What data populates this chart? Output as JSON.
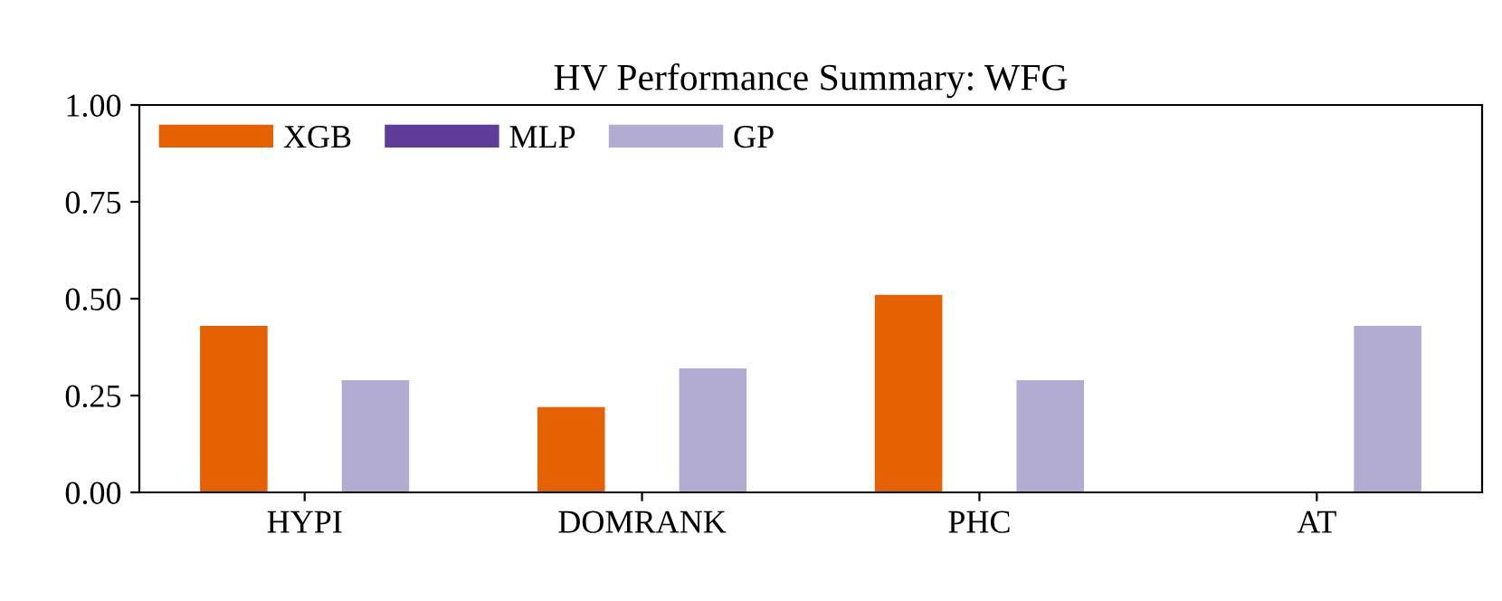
{
  "chart_data": {
    "type": "bar",
    "title": "HV Performance Summary: WFG",
    "categories": [
      "HYPI",
      "DOMRANK",
      "PHC",
      "AT"
    ],
    "series": [
      {
        "name": "XGB",
        "color": "#e66101",
        "values": [
          0.43,
          0.22,
          0.51,
          0
        ]
      },
      {
        "name": "MLP",
        "color": "#5e3c99",
        "values": [
          0,
          0,
          0,
          0
        ]
      },
      {
        "name": "GP",
        "color": "#b2abd2",
        "values": [
          0.29,
          0.32,
          0.29,
          0.43
        ]
      }
    ],
    "ylim": [
      0,
      1
    ],
    "yticks": [
      {
        "value": 0,
        "label": "0.00"
      },
      {
        "value": 0.25,
        "label": "0.25"
      },
      {
        "value": 0.5,
        "label": "0.50"
      },
      {
        "value": 0.75,
        "label": "0.75"
      },
      {
        "value": 1,
        "label": "1.00"
      }
    ],
    "grid": false,
    "legend": "top left"
  }
}
